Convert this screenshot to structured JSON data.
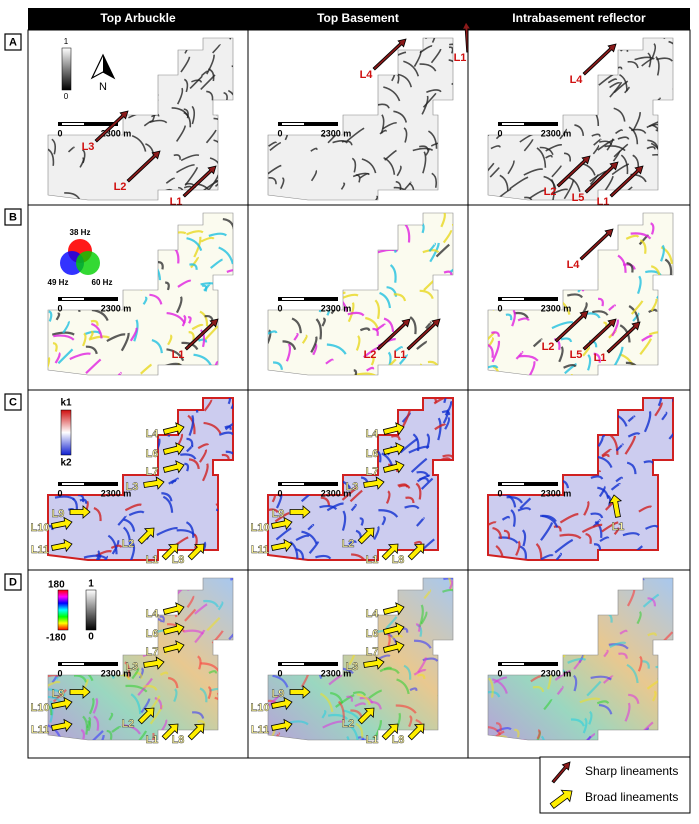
{
  "columns": [
    "Top Arbuckle",
    "Top Basement",
    "Intrabasement reflector"
  ],
  "scale": {
    "zero": "0",
    "distance": "2300 m"
  },
  "rows": [
    {
      "label": "A",
      "legend": {
        "top": "1",
        "bottom": "0",
        "north": "N"
      },
      "panels": [
        {
          "labels": [
            "L3",
            "L2",
            "L1"
          ]
        },
        {
          "labels": [
            "L4",
            "L1"
          ]
        },
        {
          "labels": [
            "L4",
            "L2",
            "L5",
            "L1"
          ]
        }
      ]
    },
    {
      "label": "B",
      "legend": {
        "red": "38 Hz",
        "blue": "49 Hz",
        "green": "60 Hz"
      },
      "panels": [
        {
          "labels": [
            "L1"
          ]
        },
        {
          "labels": [
            "L2",
            "L1"
          ]
        },
        {
          "labels": [
            "L4",
            "L2",
            "L5",
            "L1"
          ]
        }
      ]
    },
    {
      "label": "C",
      "legend": {
        "top": "k1",
        "bottom": "k2"
      },
      "panels": [
        {
          "labels": [
            "L4",
            "L6",
            "L7",
            "L3",
            "L9",
            "L10",
            "L11",
            "L2",
            "L1",
            "L8"
          ]
        },
        {
          "labels": [
            "L4",
            "L6",
            "L7",
            "L3",
            "L9",
            "L10",
            "L11",
            "L2",
            "L1",
            "L8"
          ]
        },
        {
          "labels": [
            "L1"
          ]
        }
      ]
    },
    {
      "label": "D",
      "legend": {
        "phase_top": "180",
        "phase_bottom": "-180",
        "mag_top": "1",
        "mag_bottom": "0"
      },
      "panels": [
        {
          "labels": [
            "L4",
            "L6",
            "L7",
            "L3",
            "L9",
            "L10",
            "L11",
            "L2",
            "L1",
            "L8"
          ]
        },
        {
          "labels": [
            "L4",
            "L6",
            "L7",
            "L3",
            "L9",
            "L10",
            "L11",
            "L2",
            "L1",
            "L8"
          ]
        },
        {
          "labels": []
        }
      ]
    }
  ],
  "key": {
    "sharp": "Sharp lineaments",
    "broad": "Broad lineaments"
  }
}
